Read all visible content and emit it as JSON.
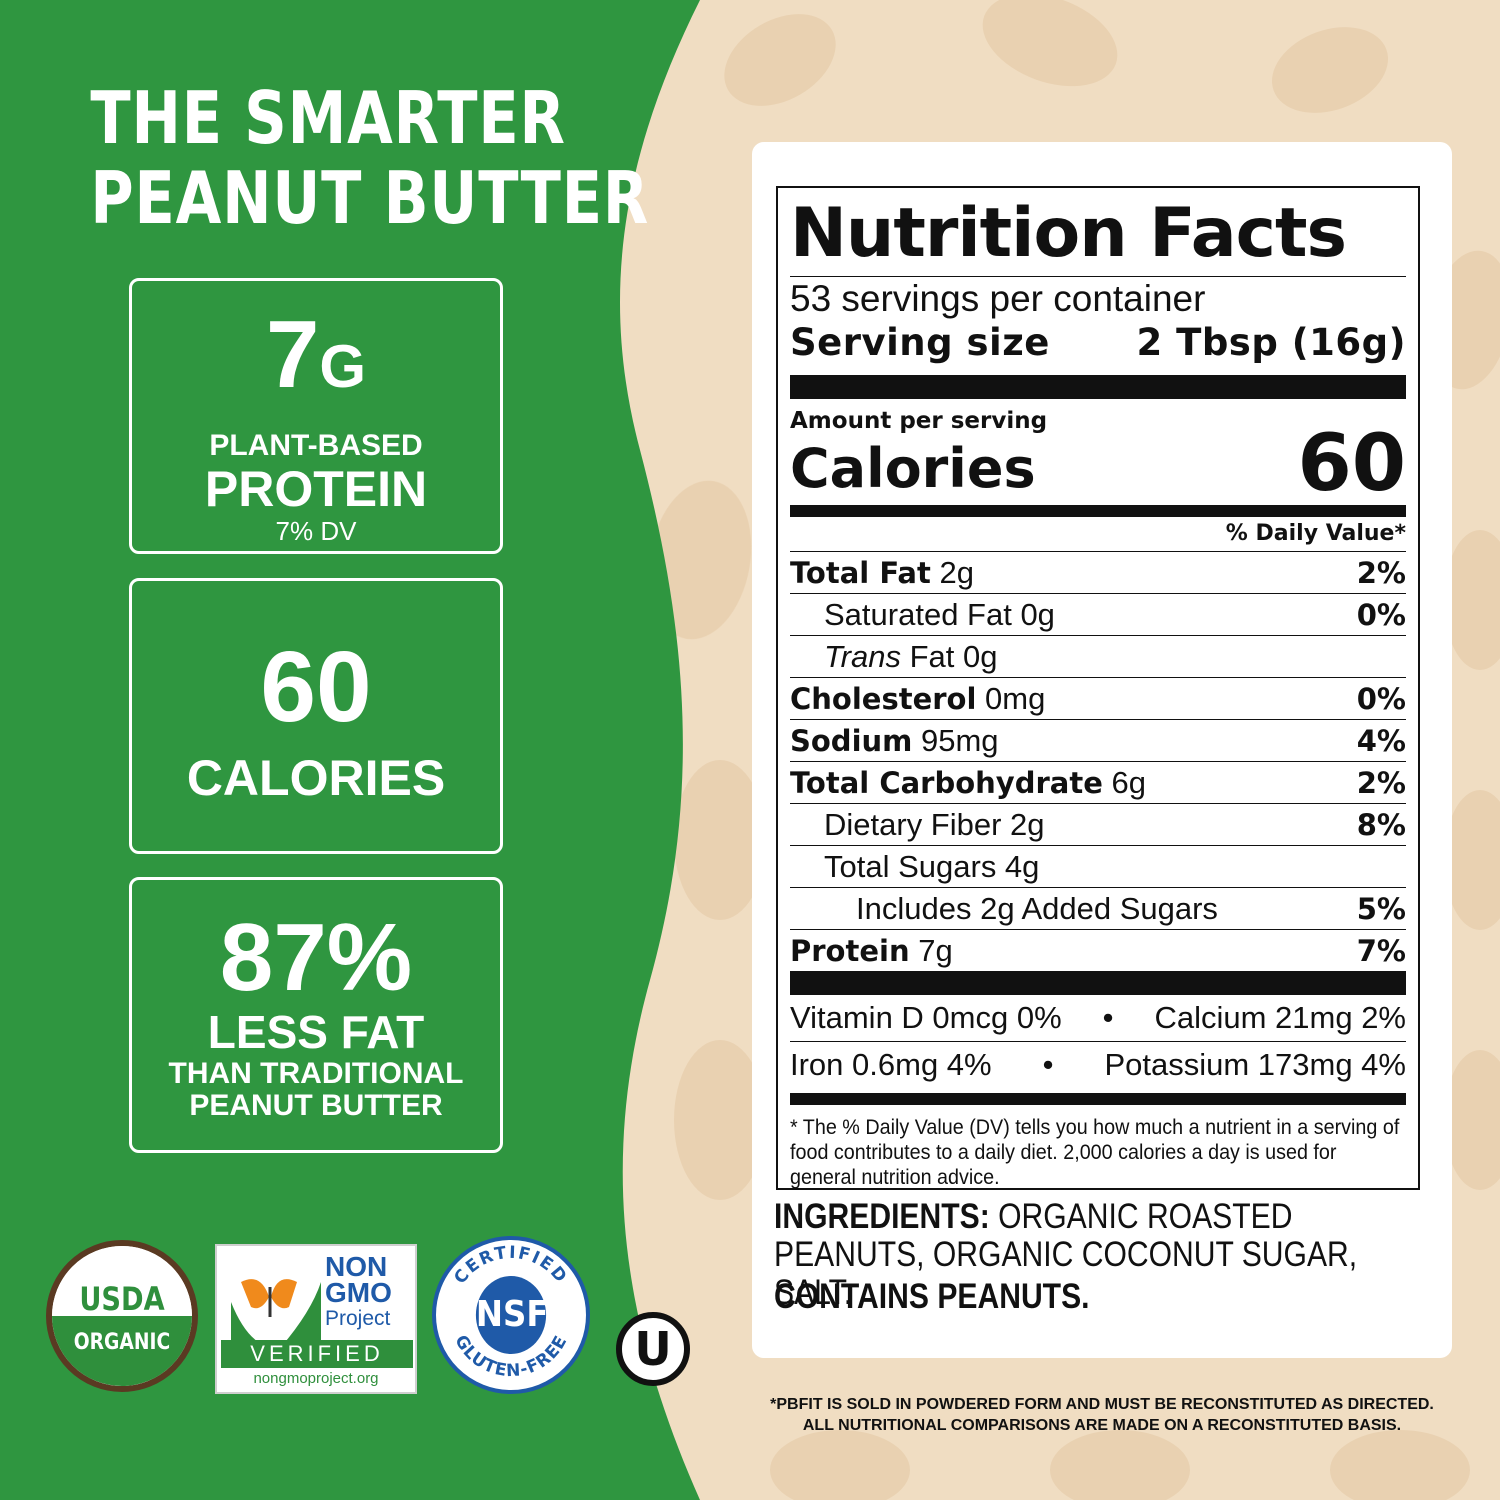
{
  "headline": {
    "line1": "THE SMARTER",
    "line2": "PEANUT BUTTER"
  },
  "stats": {
    "protein": {
      "value": "7",
      "unit": "G",
      "label1": "PLANT-BASED",
      "label2": "PROTEIN",
      "label3": "7% DV"
    },
    "calories": {
      "value": "60",
      "label": "CALORIES"
    },
    "fat": {
      "value": "87%",
      "label1": "LESS FAT",
      "label2": "THAN TRADITIONAL",
      "label3": "PEANUT BUTTER"
    }
  },
  "badges": {
    "usda": {
      "line1": "USDA",
      "line2": "ORGANIC"
    },
    "nongmo": {
      "line1": "NON",
      "line2": "GMO",
      "line3": "Project",
      "verified": "VERIFIED",
      "url": "nongmoproject.org"
    },
    "nsf": {
      "center": "NSF",
      "top_arc": "CERTIFIED",
      "bottom_arc": "GLUTEN-FREE"
    },
    "kosher": {
      "mark": "U"
    }
  },
  "nutrition": {
    "title": "Nutrition Facts",
    "servings": "53 servings per container",
    "serving_size_label": "Serving size",
    "serving_size_value": "2 Tbsp (16g)",
    "amount_per_serving": "Amount per serving",
    "calories_label": "Calories",
    "calories_value": "60",
    "dv_header": "% Daily Value*",
    "rows": [
      {
        "bold": "Total Fat",
        "amount": " 2g",
        "pct": "2%"
      },
      {
        "bold": "",
        "amount": "Saturated Fat 0g",
        "pct": "0%"
      },
      {
        "italic": "Trans",
        "amount": " Fat 0g",
        "pct": ""
      },
      {
        "bold": "Cholesterol",
        "amount": " 0mg",
        "pct": "0%"
      },
      {
        "bold": "Sodium",
        "amount": " 95mg",
        "pct": "4%"
      },
      {
        "bold": "Total Carbohydrate",
        "amount": " 6g",
        "pct": "2%"
      },
      {
        "bold": "",
        "amount": "Dietary Fiber 2g",
        "pct": "8%"
      },
      {
        "bold": "",
        "amount": "Total Sugars 4g",
        "pct": ""
      },
      {
        "bold": "",
        "amount": "Includes 2g Added Sugars",
        "pct": "5%"
      },
      {
        "bold": "Protein",
        "amount": " 7g",
        "pct": "7%"
      }
    ],
    "vitamins": {
      "vitd": "Vitamin D 0mcg 0%",
      "calcium": "Calcium 21mg 2%",
      "iron": "Iron 0.6mg 4%",
      "potassium": "Potassium 173mg 4%",
      "separator": "•"
    },
    "footnote": "* The % Daily Value (DV) tells you how much a nutrient in a serving of food contributes to a daily diet. 2,000 calories a day is used for general nutrition advice."
  },
  "ingredients": {
    "label": "INGREDIENTS:",
    "text": " ORGANIC ROASTED PEANUTS, ORGANIC COCONUT SUGAR, SALT.",
    "contains": "CONTAINS PEANUTS."
  },
  "disclaimer": {
    "line1": "*PBFIT IS SOLD IN POWDERED FORM AND MUST BE RECONSTITUTED AS DIRECTED.",
    "line2": "ALL NUTRITIONAL COMPARISONS ARE MADE ON A RECONSTITUTED BASIS."
  },
  "colors": {
    "green": "#2f9640",
    "cream": "#f0ddc2",
    "peanut_pattern": "#e8cdab",
    "text": "#111111"
  }
}
